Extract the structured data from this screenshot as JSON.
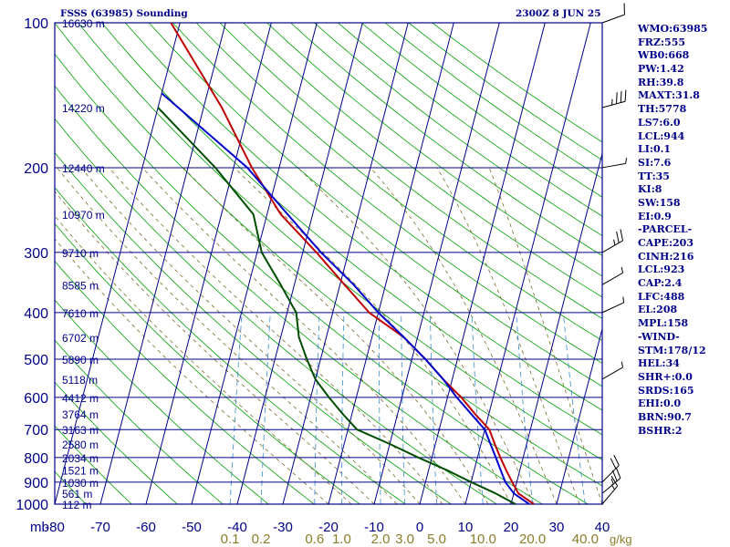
{
  "header": {
    "title": "FSSS (63985) Sounding",
    "datetime": "2300Z  8 JUN 25"
  },
  "indices": [
    "WMO:63985",
    "FRZ:555",
    "WB0:668",
    "PW:1.42",
    "RH:39.8",
    "MAXT:31.8",
    "TH:5778",
    "LS7:6.0",
    "LCL:944",
    "LI:0.1",
    "SI:7.6",
    "TT:35",
    "KI:8",
    "SW:158",
    "EI:0.9",
    "-PARCEL-",
    "CAPE:203",
    "CINH:216",
    "LCL:923",
    "CAP:2.4",
    "LFC:488",
    "EL:208",
    "MPL:158",
    "-WIND-",
    "STM:178/12",
    "HEL:34",
    "SHR+:0.0",
    "SRDS:165",
    "EHI:0.0",
    "BRN:90.7",
    "BSHR:2"
  ],
  "colors": {
    "background": "#ffffff",
    "grid": "#00008b",
    "isotherm": "#00008b",
    "dry_adiabat": "#00a000",
    "moist_adiabat": "#7a6a2a",
    "mixing_ratio": "#3a8fd0",
    "temperature": "#c00000",
    "dewpoint": "#004d00",
    "parcel": "#0000cc",
    "label_text": "#00008b",
    "mixing_label": "#8b7d2a"
  },
  "chart_data": {
    "type": "line",
    "subtype": "skew-t log-p sounding",
    "x_unit_label": "mb",
    "x_range_c": [
      -80,
      40
    ],
    "pressure_range_mb": [
      100,
      1000
    ],
    "log_pressure_axis": true,
    "grid": true,
    "temperature_ticks": [
      -80,
      -70,
      -60,
      -50,
      -40,
      -30,
      -20,
      -10,
      0,
      10,
      20,
      30,
      40
    ],
    "pressure_levels": [
      100,
      200,
      300,
      400,
      500,
      600,
      700,
      800,
      900,
      1000
    ],
    "mixing_ratio_unit": "g/kg",
    "mixing_ratio_labels": [
      {
        "label": "0.1",
        "value": 0.1
      },
      {
        "label": "0.2",
        "value": 0.2
      },
      {
        "label": "0.6",
        "value": 0.6
      },
      {
        "label": "1.0",
        "value": 1.0
      },
      {
        "label": "2.0",
        "value": 2.0
      },
      {
        "label": "3.0",
        "value": 3.0
      },
      {
        "label": "5.0",
        "value": 5.0
      },
      {
        "label": "10.0",
        "value": 10.0
      },
      {
        "label": "20.0",
        "value": 20.0
      },
      {
        "label": "40.0",
        "value": 40.0
      }
    ],
    "height_labels": [
      {
        "p": 100,
        "label": "16630 m"
      },
      {
        "p": 150,
        "label": "14220 m"
      },
      {
        "p": 200,
        "label": "12440 m"
      },
      {
        "p": 250,
        "label": "10970 m"
      },
      {
        "p": 300,
        "label": "9710 m"
      },
      {
        "p": 350,
        "label": "8585 m"
      },
      {
        "p": 400,
        "label": "7610 m"
      },
      {
        "p": 450,
        "label": "6702 m"
      },
      {
        "p": 500,
        "label": "5890 m"
      },
      {
        "p": 550,
        "label": "5118 m"
      },
      {
        "p": 600,
        "label": "4412 m"
      },
      {
        "p": 650,
        "label": "3764 m"
      },
      {
        "p": 700,
        "label": "3163 m"
      },
      {
        "p": 750,
        "label": "2580 m"
      },
      {
        "p": 800,
        "label": "2034 m"
      },
      {
        "p": 850,
        "label": "1521 m"
      },
      {
        "p": 900,
        "label": "1030 m"
      },
      {
        "p": 950,
        "label": "561 m"
      },
      {
        "p": 1000,
        "label": "112 m"
      }
    ],
    "series": [
      {
        "key": "temperature",
        "points": [
          [
            100,
            -82
          ],
          [
            150,
            -66
          ],
          [
            200,
            -56
          ],
          [
            250,
            -47
          ],
          [
            300,
            -37
          ],
          [
            350,
            -29
          ],
          [
            400,
            -22
          ],
          [
            450,
            -13
          ],
          [
            500,
            -7
          ],
          [
            550,
            -2
          ],
          [
            600,
            3
          ],
          [
            650,
            7
          ],
          [
            700,
            11
          ],
          [
            750,
            13
          ],
          [
            800,
            15
          ],
          [
            850,
            17
          ],
          [
            900,
            19
          ],
          [
            950,
            21
          ],
          [
            1000,
            25
          ]
        ]
      },
      {
        "key": "parcel",
        "points": [
          [
            140,
            -80
          ],
          [
            200,
            -57
          ],
          [
            250,
            -45.5
          ],
          [
            300,
            -36
          ],
          [
            350,
            -27
          ],
          [
            400,
            -20
          ],
          [
            450,
            -13
          ],
          [
            500,
            -7
          ],
          [
            550,
            -2
          ],
          [
            600,
            2
          ],
          [
            700,
            10
          ],
          [
            800,
            14
          ],
          [
            900,
            17.5
          ],
          [
            950,
            20
          ],
          [
            1000,
            24
          ]
        ]
      },
      {
        "key": "dewpoint",
        "points": [
          [
            150,
            -80
          ],
          [
            200,
            -64
          ],
          [
            250,
            -53
          ],
          [
            300,
            -49
          ],
          [
            350,
            -43
          ],
          [
            400,
            -38
          ],
          [
            450,
            -36
          ],
          [
            500,
            -33
          ],
          [
            550,
            -30
          ],
          [
            600,
            -26
          ],
          [
            650,
            -22
          ],
          [
            700,
            -18
          ],
          [
            750,
            -10
          ],
          [
            800,
            -3
          ],
          [
            850,
            4
          ],
          [
            900,
            10
          ],
          [
            950,
            16
          ],
          [
            1000,
            21
          ]
        ]
      }
    ],
    "wind_barbs": [
      {
        "p": 100,
        "dir": 250,
        "spd_kt": 10
      },
      {
        "p": 150,
        "dir": 255,
        "spd_kt": 35
      },
      {
        "p": 200,
        "dir": 260,
        "spd_kt": 5
      },
      {
        "p": 250,
        "dir": 250,
        "spd_kt": 0
      },
      {
        "p": 300,
        "dir": 240,
        "spd_kt": 25
      },
      {
        "p": 350,
        "dir": 240,
        "spd_kt": 5
      },
      {
        "p": 400,
        "dir": 245,
        "spd_kt": 5
      },
      {
        "p": 450,
        "dir": 250,
        "spd_kt": 0
      },
      {
        "p": 500,
        "dir": 250,
        "spd_kt": 0
      },
      {
        "p": 550,
        "dir": 240,
        "spd_kt": 5
      },
      {
        "p": 600,
        "dir": 240,
        "spd_kt": 0
      },
      {
        "p": 650,
        "dir": 230,
        "spd_kt": 0
      },
      {
        "p": 700,
        "dir": 230,
        "spd_kt": 0
      },
      {
        "p": 750,
        "dir": 225,
        "spd_kt": 0
      },
      {
        "p": 800,
        "dir": 225,
        "spd_kt": 0
      },
      {
        "p": 850,
        "dir": 220,
        "spd_kt": 0
      },
      {
        "p": 900,
        "dir": 225,
        "spd_kt": 20
      },
      {
        "p": 950,
        "dir": 230,
        "spd_kt": 25
      },
      {
        "p": 1000,
        "dir": 220,
        "spd_kt": 15
      }
    ]
  }
}
